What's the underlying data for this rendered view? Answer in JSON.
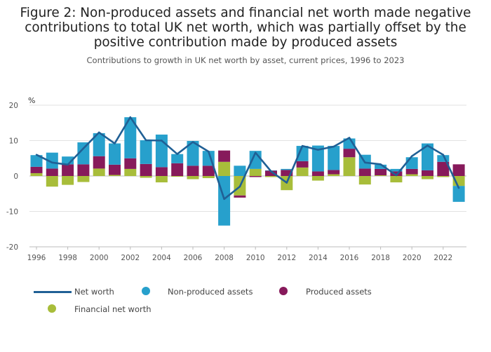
{
  "title": "Figure 2: Non-produced assets and financial net worth made negative contributions to total UK net worth, which was partially offset by the positive contribution made by produced assets",
  "subtitle": "Contributions to growth in UK net worth by asset, current prices, 1996 to 2023",
  "colors": {
    "net_worth": "#206095",
    "non_produced": "#27a0cc",
    "produced": "#871a5b",
    "financial": "#a8bd3a"
  },
  "chart_data": {
    "type": "bar",
    "stacked": true,
    "ylabel": "%",
    "ylim": [
      -20,
      20
    ],
    "yticks": [
      -20,
      -10,
      0,
      10,
      20
    ],
    "xticks": [
      "1996",
      "1998",
      "2000",
      "2002",
      "2004",
      "2006",
      "2008",
      "2010",
      "2012",
      "2014",
      "2016",
      "2018",
      "2020",
      "2022"
    ],
    "grid": true,
    "legend_position": "bottom",
    "categories": [
      "1996",
      "1997",
      "1998",
      "1999",
      "2000",
      "2001",
      "2002",
      "2003",
      "2004",
      "2005",
      "2006",
      "2007",
      "2008",
      "2009",
      "2010",
      "2011",
      "2012",
      "2013",
      "2014",
      "2015",
      "2016",
      "2017",
      "2018",
      "2019",
      "2020",
      "2021",
      "2022",
      "2023"
    ],
    "series": [
      {
        "name": "Financial net worth",
        "type": "bar",
        "values": [
          0.8,
          -3.0,
          -2.5,
          -1.7,
          2.1,
          0.3,
          2.0,
          -0.5,
          -1.8,
          -0.2,
          -0.9,
          -0.6,
          4.0,
          -5.5,
          2.0,
          -0.3,
          -4.0,
          2.4,
          -1.3,
          0.5,
          5.3,
          -2.4,
          0.2,
          -1.8,
          0.5,
          -0.9,
          -0.3,
          -2.8
        ]
      },
      {
        "name": "Produced assets",
        "type": "bar",
        "values": [
          1.8,
          2.1,
          3.3,
          3.3,
          3.5,
          2.9,
          3.0,
          3.4,
          2.5,
          3.6,
          2.9,
          2.9,
          3.2,
          -0.6,
          -0.3,
          1.5,
          1.7,
          1.8,
          1.3,
          1.2,
          2.4,
          2.1,
          1.8,
          1.3,
          1.5,
          1.6,
          4.0,
          3.3
        ]
      },
      {
        "name": "Non-produced assets",
        "type": "bar",
        "values": [
          3.3,
          4.5,
          2.2,
          6.2,
          6.5,
          6.0,
          11.6,
          6.7,
          9.2,
          2.6,
          7.0,
          4.2,
          -14.0,
          2.9,
          5.1,
          0.1,
          0.3,
          4.3,
          7.3,
          6.8,
          2.9,
          3.9,
          1.2,
          0.7,
          3.3,
          7.6,
          1.9,
          -4.5
        ]
      },
      {
        "name": "Net worth",
        "type": "line",
        "values": [
          6.0,
          3.8,
          3.2,
          7.8,
          12.3,
          9.2,
          16.6,
          10.1,
          10.0,
          6.2,
          9.6,
          6.9,
          -6.5,
          -3.0,
          6.6,
          1.3,
          -1.9,
          8.5,
          7.4,
          8.3,
          10.8,
          3.8,
          3.3,
          0.2,
          5.6,
          8.6,
          6.0,
          -3.4
        ]
      }
    ]
  },
  "legend": [
    {
      "name": "Net worth",
      "color_key": "net_worth",
      "shape": "line"
    },
    {
      "name": "Non-produced assets",
      "color_key": "non_produced",
      "shape": "dot"
    },
    {
      "name": "Produced assets",
      "color_key": "produced",
      "shape": "dot"
    },
    {
      "name": "Financial net worth",
      "color_key": "financial",
      "shape": "dot"
    }
  ]
}
